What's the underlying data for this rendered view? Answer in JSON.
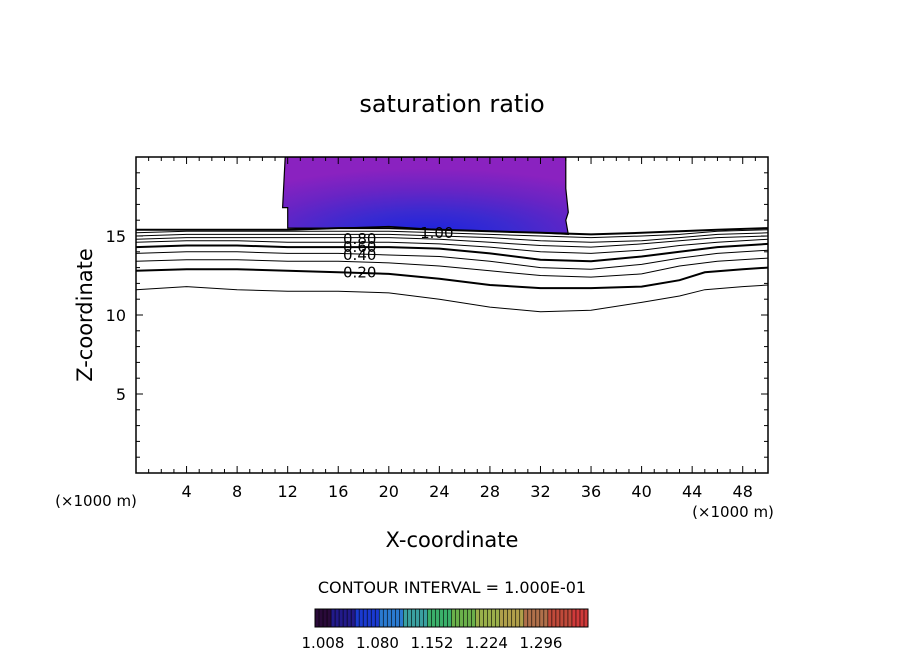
{
  "chart_data": {
    "type": "contour",
    "title": "saturation ratio",
    "xlabel": "X-coordinate",
    "ylabel": "Z-coordinate",
    "x_unit": "(×1000 m)",
    "z_unit": "(×1000 m)",
    "xlim": [
      0,
      50
    ],
    "ylim": [
      0,
      20
    ],
    "x_ticks": [
      4,
      8,
      12,
      16,
      20,
      24,
      28,
      32,
      36,
      40,
      44,
      48
    ],
    "y_ticks": [
      5,
      10,
      15
    ],
    "contour_interval_text": "CONTOUR INTERVAL = 1.000E-01",
    "contour_labels": [
      {
        "text": "0.20",
        "x": 17.7,
        "z": 12.7
      },
      {
        "text": "0.40",
        "x": 17.7,
        "z": 13.8
      },
      {
        "text": "0.60",
        "x": 17.7,
        "z": 14.3
      },
      {
        "text": "0.80",
        "x": 17.7,
        "z": 14.8
      },
      {
        "text": "1.00",
        "x": 23.8,
        "z": 15.2
      }
    ],
    "contours": [
      {
        "level": 0.1,
        "bold": false,
        "points": [
          [
            0,
            11.6
          ],
          [
            4,
            11.8
          ],
          [
            8,
            11.6
          ],
          [
            12,
            11.5
          ],
          [
            16,
            11.5
          ],
          [
            20,
            11.4
          ],
          [
            24,
            11.0
          ],
          [
            28,
            10.5
          ],
          [
            32,
            10.2
          ],
          [
            36,
            10.3
          ],
          [
            40,
            10.8
          ],
          [
            43,
            11.2
          ],
          [
            45,
            11.6
          ],
          [
            48,
            11.8
          ],
          [
            50,
            11.9
          ]
        ]
      },
      {
        "level": 0.2,
        "bold": true,
        "points": [
          [
            0,
            12.8
          ],
          [
            4,
            12.9
          ],
          [
            8,
            12.9
          ],
          [
            12,
            12.8
          ],
          [
            16,
            12.7
          ],
          [
            20,
            12.6
          ],
          [
            24,
            12.3
          ],
          [
            28,
            11.9
          ],
          [
            32,
            11.7
          ],
          [
            36,
            11.7
          ],
          [
            40,
            11.8
          ],
          [
            43,
            12.2
          ],
          [
            45,
            12.7
          ],
          [
            48,
            12.9
          ],
          [
            50,
            13.0
          ]
        ]
      },
      {
        "level": 0.3,
        "bold": false,
        "points": [
          [
            0,
            13.4
          ],
          [
            4,
            13.5
          ],
          [
            8,
            13.5
          ],
          [
            12,
            13.4
          ],
          [
            16,
            13.4
          ],
          [
            20,
            13.3
          ],
          [
            24,
            13.1
          ],
          [
            28,
            12.8
          ],
          [
            32,
            12.5
          ],
          [
            36,
            12.4
          ],
          [
            40,
            12.6
          ],
          [
            43,
            13.1
          ],
          [
            46,
            13.4
          ],
          [
            50,
            13.6
          ]
        ]
      },
      {
        "level": 0.4,
        "bold": false,
        "points": [
          [
            0,
            13.9
          ],
          [
            4,
            14.0
          ],
          [
            8,
            14.0
          ],
          [
            12,
            13.9
          ],
          [
            16,
            13.9
          ],
          [
            20,
            13.8
          ],
          [
            24,
            13.7
          ],
          [
            28,
            13.4
          ],
          [
            32,
            13.0
          ],
          [
            36,
            12.9
          ],
          [
            40,
            13.2
          ],
          [
            43,
            13.6
          ],
          [
            46,
            13.9
          ],
          [
            50,
            14.1
          ]
        ]
      },
      {
        "level": 0.5,
        "bold": true,
        "points": [
          [
            0,
            14.3
          ],
          [
            4,
            14.4
          ],
          [
            8,
            14.4
          ],
          [
            12,
            14.3
          ],
          [
            16,
            14.3
          ],
          [
            20,
            14.3
          ],
          [
            24,
            14.2
          ],
          [
            28,
            13.9
          ],
          [
            32,
            13.5
          ],
          [
            36,
            13.4
          ],
          [
            40,
            13.7
          ],
          [
            43,
            14.0
          ],
          [
            46,
            14.3
          ],
          [
            50,
            14.5
          ]
        ]
      },
      {
        "level": 0.6,
        "bold": false,
        "points": [
          [
            0,
            14.6
          ],
          [
            4,
            14.7
          ],
          [
            8,
            14.7
          ],
          [
            12,
            14.6
          ],
          [
            16,
            14.6
          ],
          [
            20,
            14.6
          ],
          [
            24,
            14.5
          ],
          [
            28,
            14.3
          ],
          [
            32,
            14.0
          ],
          [
            36,
            13.9
          ],
          [
            40,
            14.1
          ],
          [
            43,
            14.4
          ],
          [
            46,
            14.6
          ],
          [
            50,
            14.8
          ]
        ]
      },
      {
        "level": 0.7,
        "bold": false,
        "points": [
          [
            0,
            14.8
          ],
          [
            4,
            14.9
          ],
          [
            8,
            14.9
          ],
          [
            12,
            14.9
          ],
          [
            16,
            14.9
          ],
          [
            20,
            14.9
          ],
          [
            24,
            14.8
          ],
          [
            28,
            14.6
          ],
          [
            32,
            14.4
          ],
          [
            36,
            14.3
          ],
          [
            40,
            14.5
          ],
          [
            43,
            14.7
          ],
          [
            46,
            14.9
          ],
          [
            50,
            15.0
          ]
        ]
      },
      {
        "level": 0.8,
        "bold": false,
        "points": [
          [
            0,
            15.0
          ],
          [
            4,
            15.1
          ],
          [
            8,
            15.1
          ],
          [
            12,
            15.1
          ],
          [
            16,
            15.1
          ],
          [
            20,
            15.1
          ],
          [
            24,
            15.0
          ],
          [
            28,
            14.9
          ],
          [
            32,
            14.7
          ],
          [
            36,
            14.6
          ],
          [
            40,
            14.7
          ],
          [
            43,
            14.9
          ],
          [
            46,
            15.1
          ],
          [
            50,
            15.2
          ]
        ]
      },
      {
        "level": 0.9,
        "bold": false,
        "points": [
          [
            0,
            15.2
          ],
          [
            4,
            15.3
          ],
          [
            8,
            15.3
          ],
          [
            12,
            15.3
          ],
          [
            16,
            15.3
          ],
          [
            20,
            15.3
          ],
          [
            24,
            15.2
          ],
          [
            28,
            15.1
          ],
          [
            32,
            15.0
          ],
          [
            36,
            14.9
          ],
          [
            40,
            15.0
          ],
          [
            43,
            15.1
          ],
          [
            46,
            15.3
          ],
          [
            50,
            15.4
          ]
        ]
      },
      {
        "level": 1.0,
        "bold": true,
        "points": [
          [
            0,
            15.4
          ],
          [
            4,
            15.4
          ],
          [
            8,
            15.4
          ],
          [
            12,
            15.4
          ],
          [
            16,
            15.5
          ],
          [
            20,
            15.5
          ],
          [
            24,
            15.4
          ],
          [
            28,
            15.3
          ],
          [
            32,
            15.2
          ],
          [
            36,
            15.1
          ],
          [
            40,
            15.2
          ],
          [
            43,
            15.3
          ],
          [
            46,
            15.4
          ],
          [
            50,
            15.5
          ]
        ]
      }
    ],
    "shaded_region": {
      "description_levels": "supersaturation >= 1.008",
      "outline": [
        [
          11.8,
          20
        ],
        [
          11.6,
          16.8
        ],
        [
          12.0,
          16.8
        ],
        [
          12.0,
          15.5
        ],
        [
          16,
          15.5
        ],
        [
          20,
          15.6
        ],
        [
          24,
          15.4
        ],
        [
          28,
          15.3
        ],
        [
          32,
          15.2
        ],
        [
          34.2,
          15.1
        ],
        [
          34.0,
          16.0
        ],
        [
          34.2,
          16.5
        ],
        [
          34.0,
          18.0
        ],
        [
          34.0,
          20
        ]
      ],
      "fill_inner": "#4a2ad0",
      "fill_outer": "#8a22c0"
    },
    "colorbar": {
      "tick_labels": [
        "1.008",
        "1.080",
        "1.152",
        "1.224",
        "1.296"
      ],
      "colors": [
        "#2a0a3a",
        "#221a8a",
        "#1a3ad0",
        "#2a7ad0",
        "#3aa0a0",
        "#3ab06a",
        "#6ab04a",
        "#9ab04a",
        "#b0a04a",
        "#b0704a",
        "#c04a3a",
        "#d03a3a"
      ]
    }
  }
}
